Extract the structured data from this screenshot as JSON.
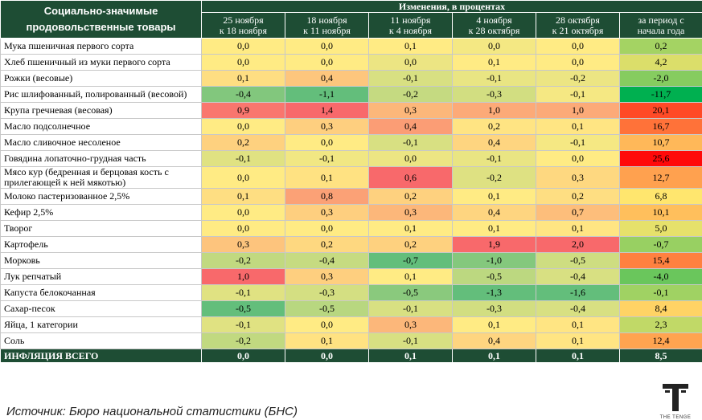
{
  "header": {
    "corner": "Социально-значимые продовольственные товары",
    "group": "Изменения, в процентах",
    "columns": [
      [
        "25 ноября",
        "к 18 ноября"
      ],
      [
        "18 ноября",
        "к 11 ноября"
      ],
      [
        "11 ноября",
        "к 4 ноября"
      ],
      [
        "4 ноября",
        "к 28 октября"
      ],
      [
        "28 октября",
        "к 21 октября"
      ],
      [
        "за период с",
        "начала года"
      ]
    ]
  },
  "rows": [
    {
      "name": "Мука пшеничная первого сорта",
      "values": [
        "0,0",
        "0,0",
        "0,1",
        "0,0",
        "0,0",
        "0,2"
      ]
    },
    {
      "name": "Хлеб пшеничный из муки первого сорта",
      "values": [
        "0,0",
        "0,0",
        "0,0",
        "0,1",
        "0,0",
        "4,2"
      ]
    },
    {
      "name": "Рожки (весовые)",
      "values": [
        "0,1",
        "0,4",
        "-0,1",
        "-0,1",
        "-0,2",
        "-2,0"
      ]
    },
    {
      "name": "Рис шлифованный, полированный (весовой)",
      "values": [
        "-0,4",
        "-1,1",
        "-0,2",
        "-0,3",
        "-0,1",
        "-11,7"
      ]
    },
    {
      "name": "Крупа гречневая (весовая)",
      "values": [
        "0,9",
        "1,4",
        "0,3",
        "1,0",
        "1,0",
        "20,1"
      ]
    },
    {
      "name": "Масло подсолнечное",
      "values": [
        "0,0",
        "0,3",
        "0,4",
        "0,2",
        "0,1",
        "16,7"
      ]
    },
    {
      "name": "Масло сливочное несоленое",
      "values": [
        "0,2",
        "0,0",
        "-0,1",
        "0,4",
        "-0,1",
        "10,7"
      ]
    },
    {
      "name": "Говядина лопаточно-грудная часть",
      "values": [
        "-0,1",
        "-0,1",
        "0,0",
        "-0,1",
        "0,0",
        "25,6"
      ]
    },
    {
      "name": "Мясо кур (бедренная и берцовая кость с прилегающей к ней мякотью)",
      "values": [
        "0,0",
        "0,1",
        "0,6",
        "-0,2",
        "0,3",
        "12,7"
      ]
    },
    {
      "name": "Молоко пастеризованное 2,5%",
      "values": [
        "0,1",
        "0,8",
        "0,2",
        "0,1",
        "0,2",
        "6,8"
      ]
    },
    {
      "name": "Кефир 2,5%",
      "values": [
        "0,0",
        "0,3",
        "0,3",
        "0,4",
        "0,7",
        "10,1"
      ]
    },
    {
      "name": "Творог",
      "values": [
        "0,0",
        "0,0",
        "0,1",
        "0,1",
        "0,1",
        "5,0"
      ]
    },
    {
      "name": "Картофель",
      "values": [
        "0,3",
        "0,2",
        "0,2",
        "1,9",
        "2,0",
        "-0,7"
      ]
    },
    {
      "name": "Морковь",
      "values": [
        "-0,2",
        "-0,4",
        "-0,7",
        "-1,0",
        "-0,5",
        "15,4"
      ]
    },
    {
      "name": "Лук репчатый",
      "values": [
        "1,0",
        "0,3",
        "0,1",
        "-0,5",
        "-0,4",
        "-4,0"
      ]
    },
    {
      "name": "Капуста белокочанная",
      "values": [
        "-0,1",
        "-0,3",
        "-0,5",
        "-1,3",
        "-1,6",
        "-0,1"
      ]
    },
    {
      "name": "Сахар-песок",
      "values": [
        "-0,5",
        "-0,5",
        "-0,1",
        "-0,3",
        "-0,4",
        "8,4"
      ]
    },
    {
      "name": "Яйца, 1 категории",
      "values": [
        "-0,1",
        "0,0",
        "0,3",
        "0,1",
        "0,1",
        "2,3"
      ]
    },
    {
      "name": "Соль",
      "values": [
        "-0,2",
        "0,1",
        "-0,1",
        "0,4",
        "0,1",
        "12,4"
      ]
    }
  ],
  "total": {
    "name": "ИНФЛЯЦИЯ ВСЕГО",
    "values": [
      "0,0",
      "0,0",
      "0,1",
      "0,1",
      "0,1",
      "8,5"
    ]
  },
  "source": "Источник: Бюро национальной статистики (БНС)",
  "logo": "THE TENGE"
}
